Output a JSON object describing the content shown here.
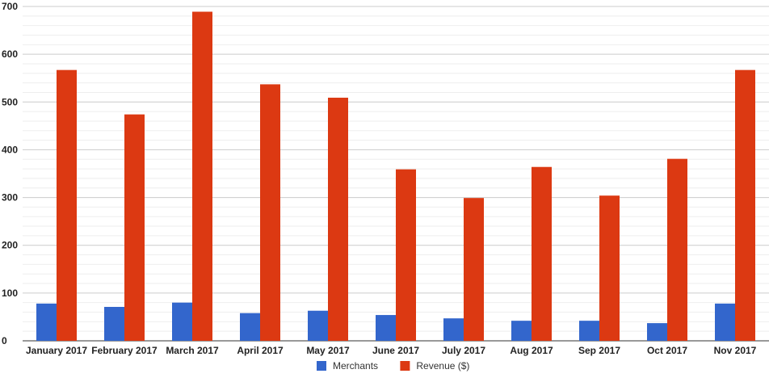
{
  "chart_data": {
    "type": "bar",
    "categories": [
      "January 2017",
      "February 2017",
      "March 2017",
      "April 2017",
      "May 2017",
      "June 2017",
      "July 2017",
      "Aug 2017",
      "Sep 2017",
      "Oct 2017",
      "Nov 2017"
    ],
    "series": [
      {
        "name": "Merchants",
        "color": "#3366cc",
        "values": [
          78,
          71,
          80,
          58,
          63,
          54,
          47,
          42,
          42,
          37,
          78
        ]
      },
      {
        "name": "Revenue ($)",
        "color": "#dc3912",
        "values": [
          567,
          474,
          689,
          537,
          509,
          359,
          299,
          364,
          304,
          381,
          567
        ]
      }
    ],
    "ylim": [
      0,
      700
    ],
    "yticks": [
      0,
      100,
      200,
      300,
      400,
      500,
      600,
      700
    ],
    "grid": true,
    "legend_position": "bottom"
  }
}
